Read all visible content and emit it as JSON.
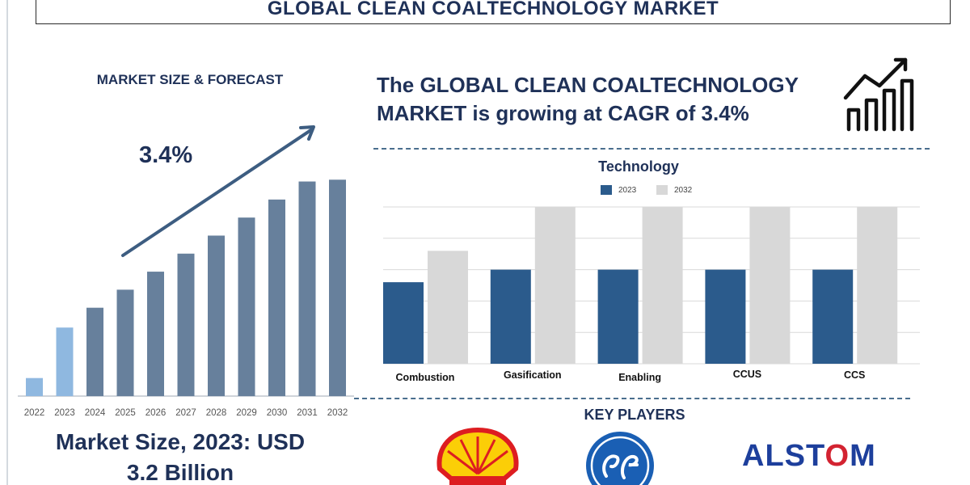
{
  "header": {
    "title": "GLOBAL CLEAN COALTECHNOLOGY MARKET"
  },
  "forecast": {
    "label": "MARKET SIZE & FORECAST",
    "cagr_text": "3.4%"
  },
  "headline": {
    "line1": "The GLOBAL CLEAN COALTECHNOLOGY",
    "line2": "MARKET is growing at CAGR of 3.4%"
  },
  "market_size": {
    "line1": "Market Size, 2023: USD",
    "line2": "3.2 Billion"
  },
  "key_players": {
    "title": "KEY PLAYERS",
    "logos": [
      "Shell",
      "GE",
      "ALSTOM"
    ]
  },
  "colors": {
    "navy": "#1f3158",
    "bar_dark": "#67809c",
    "bar_highlight": "#8fb8e0",
    "bar_2023": "#2b5b8c",
    "bar_2032": "#d8d8d8",
    "dashed_rule": "#4a6e8e"
  },
  "icons": [
    "growth-chart-icon",
    "trend-arrow-icon"
  ],
  "chart_data": [
    {
      "type": "bar",
      "title": "",
      "categories": [
        "2022",
        "2023",
        "2024",
        "2025",
        "2026",
        "2027",
        "2028",
        "2029",
        "2030",
        "2031",
        "2032"
      ],
      "values": [
        1.0,
        3.8,
        4.9,
        5.9,
        6.9,
        7.9,
        8.9,
        9.9,
        10.9,
        11.9,
        12.0
      ],
      "highlight": [
        "2022",
        "2023"
      ],
      "annotation": "3.4%",
      "ylim": [
        0,
        13
      ],
      "grid": false,
      "note_values": "relative bar heights estimated; axis not printed"
    },
    {
      "type": "bar",
      "title": "Technology",
      "categories": [
        "Combustion",
        "Gasification",
        "Enabling",
        "CCUS",
        "CCS"
      ],
      "series": [
        {
          "name": "2023",
          "values": [
            52,
            60,
            60,
            60,
            60
          ]
        },
        {
          "name": "2032",
          "values": [
            72,
            100,
            100,
            100,
            100
          ]
        }
      ],
      "ylim": [
        0,
        100
      ],
      "grid": true,
      "legend": "top"
    }
  ]
}
